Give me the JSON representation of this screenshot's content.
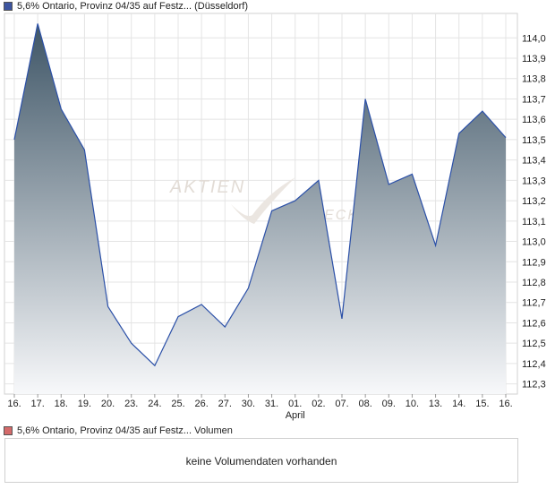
{
  "legend": {
    "price_label": "5,6% Ontario, Provinz 04/35 auf Festz... (Düsseldorf)",
    "price_color": "#3d55a0",
    "volume_label": "5,6% Ontario, Provinz 04/35 auf Festz... Volumen",
    "volume_color": "#d46a6a"
  },
  "volume": {
    "message": "keine Volumendaten vorhanden"
  },
  "watermark": {
    "line1": "AKTIEN",
    "line2": "CHECK"
  },
  "chart_data": {
    "type": "area",
    "x_labels": [
      "16.",
      "17.",
      "18.",
      "19.",
      "20.",
      "23.",
      "24.",
      "25.",
      "26.",
      "27.",
      "30.",
      "31.",
      "01.",
      "02.",
      "07.",
      "08.",
      "09.",
      "10.",
      "13.",
      "14.",
      "15.",
      "16."
    ],
    "month_label": "April",
    "month_label_index": 12,
    "values": [
      113.5,
      114.07,
      113.65,
      113.45,
      112.68,
      112.5,
      112.39,
      112.63,
      112.69,
      112.58,
      112.77,
      113.15,
      113.2,
      113.3,
      112.62,
      113.7,
      113.28,
      113.33,
      112.98,
      113.53,
      113.64,
      113.51
    ],
    "y_ticks": [
      "114,0",
      "113,9",
      "113,8",
      "113,7",
      "113,6",
      "113,5",
      "113,4",
      "113,3",
      "113,2",
      "113,1",
      "113,0",
      "112,9",
      "112,8",
      "112,7",
      "112,6",
      "112,5",
      "112,4",
      "112,3"
    ],
    "ylim": [
      112.25,
      114.12
    ],
    "grid": true,
    "line_color": "#2b50a8",
    "fill_top_color": "#3e5566",
    "fill_bottom_color": "#f7f8fa"
  }
}
